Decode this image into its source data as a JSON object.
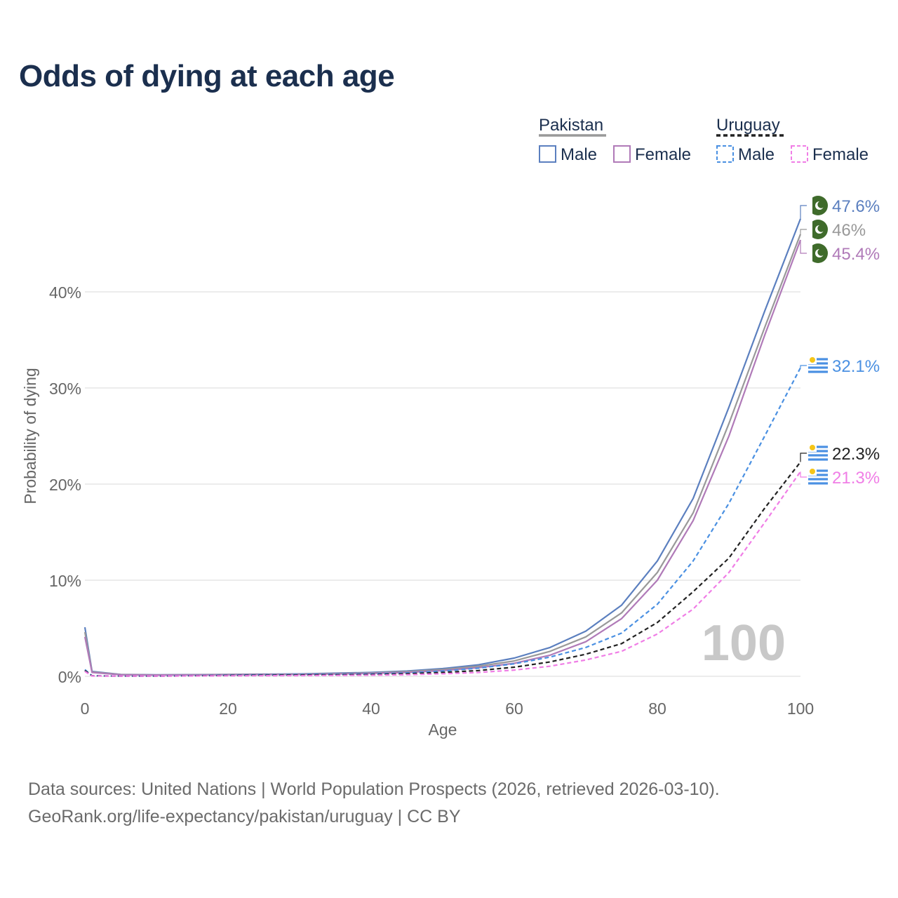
{
  "title": "Odds of dying at each age",
  "source": {
    "line1": "Data sources: United Nations | World Population Prospects (2026, retrieved 2026-03-10).",
    "line2": "GeoRank.org/life-expectancy/pakistan/uruguay | CC BY"
  },
  "legend": {
    "groups": [
      {
        "country": "Pakistan",
        "line_style": "solid",
        "items": [
          {
            "label": "Male",
            "color": "#5b7fbf"
          },
          {
            "label": "Female",
            "color": "#b07ab8"
          }
        ]
      },
      {
        "country": "Uruguay",
        "line_style": "dashed",
        "items": [
          {
            "label": "Male",
            "color": "#4a90e2"
          },
          {
            "label": "Female",
            "color": "#f07ee6"
          }
        ]
      }
    ]
  },
  "watermark_year": "100",
  "colors": {
    "pakistan_male": "#5b7fbf",
    "pakistan_female": "#b07ab8",
    "pakistan_total": "#999999",
    "uruguay_male": "#4a90e2",
    "uruguay_female": "#f07ee6",
    "uruguay_total": "#222222",
    "axis_text": "#666666",
    "grid": "#e6e6e6",
    "pakistan_flag": "#3f6b2b",
    "uruguay_flag_stripe": "#4a90e2",
    "uruguay_sun": "#f5c518"
  },
  "chart_data": {
    "type": "line",
    "title": "Odds of dying at each age",
    "xlabel": "Age",
    "ylabel": "Probability of dying",
    "xlim": [
      0,
      100
    ],
    "ylim": [
      0,
      50
    ],
    "x_ticks": [
      0,
      20,
      40,
      60,
      80,
      100
    ],
    "y_ticks": [
      0,
      10,
      20,
      30,
      40
    ],
    "y_tick_labels": [
      "0%",
      "10%",
      "20%",
      "30%",
      "40%"
    ],
    "grid": true,
    "legend_position": "top-right",
    "series": [
      {
        "name": "Pakistan Male",
        "country": "Pakistan",
        "style": "solid",
        "color_key": "pakistan_male",
        "end_label": "47.6%",
        "points": [
          [
            0,
            5.1
          ],
          [
            1,
            0.5
          ],
          [
            5,
            0.2
          ],
          [
            10,
            0.15
          ],
          [
            20,
            0.2
          ],
          [
            30,
            0.25
          ],
          [
            40,
            0.4
          ],
          [
            45,
            0.55
          ],
          [
            50,
            0.8
          ],
          [
            55,
            1.2
          ],
          [
            60,
            1.9
          ],
          [
            65,
            3.0
          ],
          [
            70,
            4.7
          ],
          [
            75,
            7.4
          ],
          [
            80,
            12.0
          ],
          [
            85,
            18.5
          ],
          [
            90,
            28.0
          ],
          [
            95,
            38.0
          ],
          [
            100,
            47.6
          ]
        ]
      },
      {
        "name": "Pakistan Total",
        "country": "Pakistan",
        "style": "solid",
        "color_key": "pakistan_total",
        "end_label": "46%",
        "points": [
          [
            0,
            4.6
          ],
          [
            1,
            0.45
          ],
          [
            5,
            0.18
          ],
          [
            10,
            0.14
          ],
          [
            20,
            0.18
          ],
          [
            30,
            0.22
          ],
          [
            40,
            0.35
          ],
          [
            45,
            0.48
          ],
          [
            50,
            0.7
          ],
          [
            55,
            1.05
          ],
          [
            60,
            1.6
          ],
          [
            65,
            2.6
          ],
          [
            70,
            4.1
          ],
          [
            75,
            6.6
          ],
          [
            80,
            10.8
          ],
          [
            85,
            17.0
          ],
          [
            90,
            26.3
          ],
          [
            95,
            36.3
          ],
          [
            100,
            46.0
          ]
        ]
      },
      {
        "name": "Pakistan Female",
        "country": "Pakistan",
        "style": "solid",
        "color_key": "pakistan_female",
        "end_label": "45.4%",
        "points": [
          [
            0,
            4.1
          ],
          [
            1,
            0.4
          ],
          [
            5,
            0.16
          ],
          [
            10,
            0.13
          ],
          [
            20,
            0.16
          ],
          [
            30,
            0.2
          ],
          [
            40,
            0.3
          ],
          [
            45,
            0.4
          ],
          [
            50,
            0.6
          ],
          [
            55,
            0.9
          ],
          [
            60,
            1.35
          ],
          [
            65,
            2.2
          ],
          [
            70,
            3.6
          ],
          [
            75,
            6.0
          ],
          [
            80,
            10.0
          ],
          [
            85,
            16.2
          ],
          [
            90,
            25.0
          ],
          [
            95,
            35.5
          ],
          [
            100,
            45.4
          ]
        ]
      },
      {
        "name": "Uruguay Male",
        "country": "Uruguay",
        "style": "dashed",
        "color_key": "uruguay_male",
        "end_label": "32.1%",
        "points": [
          [
            0,
            0.7
          ],
          [
            1,
            0.06
          ],
          [
            5,
            0.03
          ],
          [
            10,
            0.03
          ],
          [
            20,
            0.12
          ],
          [
            30,
            0.18
          ],
          [
            40,
            0.25
          ],
          [
            45,
            0.35
          ],
          [
            50,
            0.55
          ],
          [
            55,
            0.85
          ],
          [
            60,
            1.3
          ],
          [
            65,
            2.0
          ],
          [
            70,
            3.0
          ],
          [
            75,
            4.5
          ],
          [
            80,
            7.5
          ],
          [
            85,
            12.0
          ],
          [
            90,
            18.0
          ],
          [
            95,
            25.0
          ],
          [
            100,
            32.1
          ]
        ]
      },
      {
        "name": "Uruguay Total",
        "country": "Uruguay",
        "style": "dashed",
        "color_key": "uruguay_total",
        "end_label": "22.3%",
        "points": [
          [
            0,
            0.6
          ],
          [
            1,
            0.05
          ],
          [
            5,
            0.02
          ],
          [
            10,
            0.02
          ],
          [
            20,
            0.09
          ],
          [
            30,
            0.13
          ],
          [
            40,
            0.18
          ],
          [
            45,
            0.26
          ],
          [
            50,
            0.4
          ],
          [
            55,
            0.6
          ],
          [
            60,
            0.95
          ],
          [
            65,
            1.5
          ],
          [
            70,
            2.3
          ],
          [
            75,
            3.4
          ],
          [
            80,
            5.6
          ],
          [
            85,
            8.8
          ],
          [
            90,
            12.3
          ],
          [
            95,
            17.5
          ],
          [
            100,
            22.3
          ]
        ]
      },
      {
        "name": "Uruguay Female",
        "country": "Uruguay",
        "style": "dashed",
        "color_key": "uruguay_female",
        "end_label": "21.3%",
        "points": [
          [
            0,
            0.5
          ],
          [
            1,
            0.04
          ],
          [
            5,
            0.02
          ],
          [
            10,
            0.02
          ],
          [
            20,
            0.05
          ],
          [
            30,
            0.07
          ],
          [
            40,
            0.12
          ],
          [
            45,
            0.17
          ],
          [
            50,
            0.26
          ],
          [
            55,
            0.4
          ],
          [
            60,
            0.65
          ],
          [
            65,
            1.05
          ],
          [
            70,
            1.7
          ],
          [
            75,
            2.6
          ],
          [
            80,
            4.4
          ],
          [
            85,
            7.0
          ],
          [
            90,
            10.8
          ],
          [
            95,
            16.0
          ],
          [
            100,
            21.3
          ]
        ]
      }
    ]
  }
}
